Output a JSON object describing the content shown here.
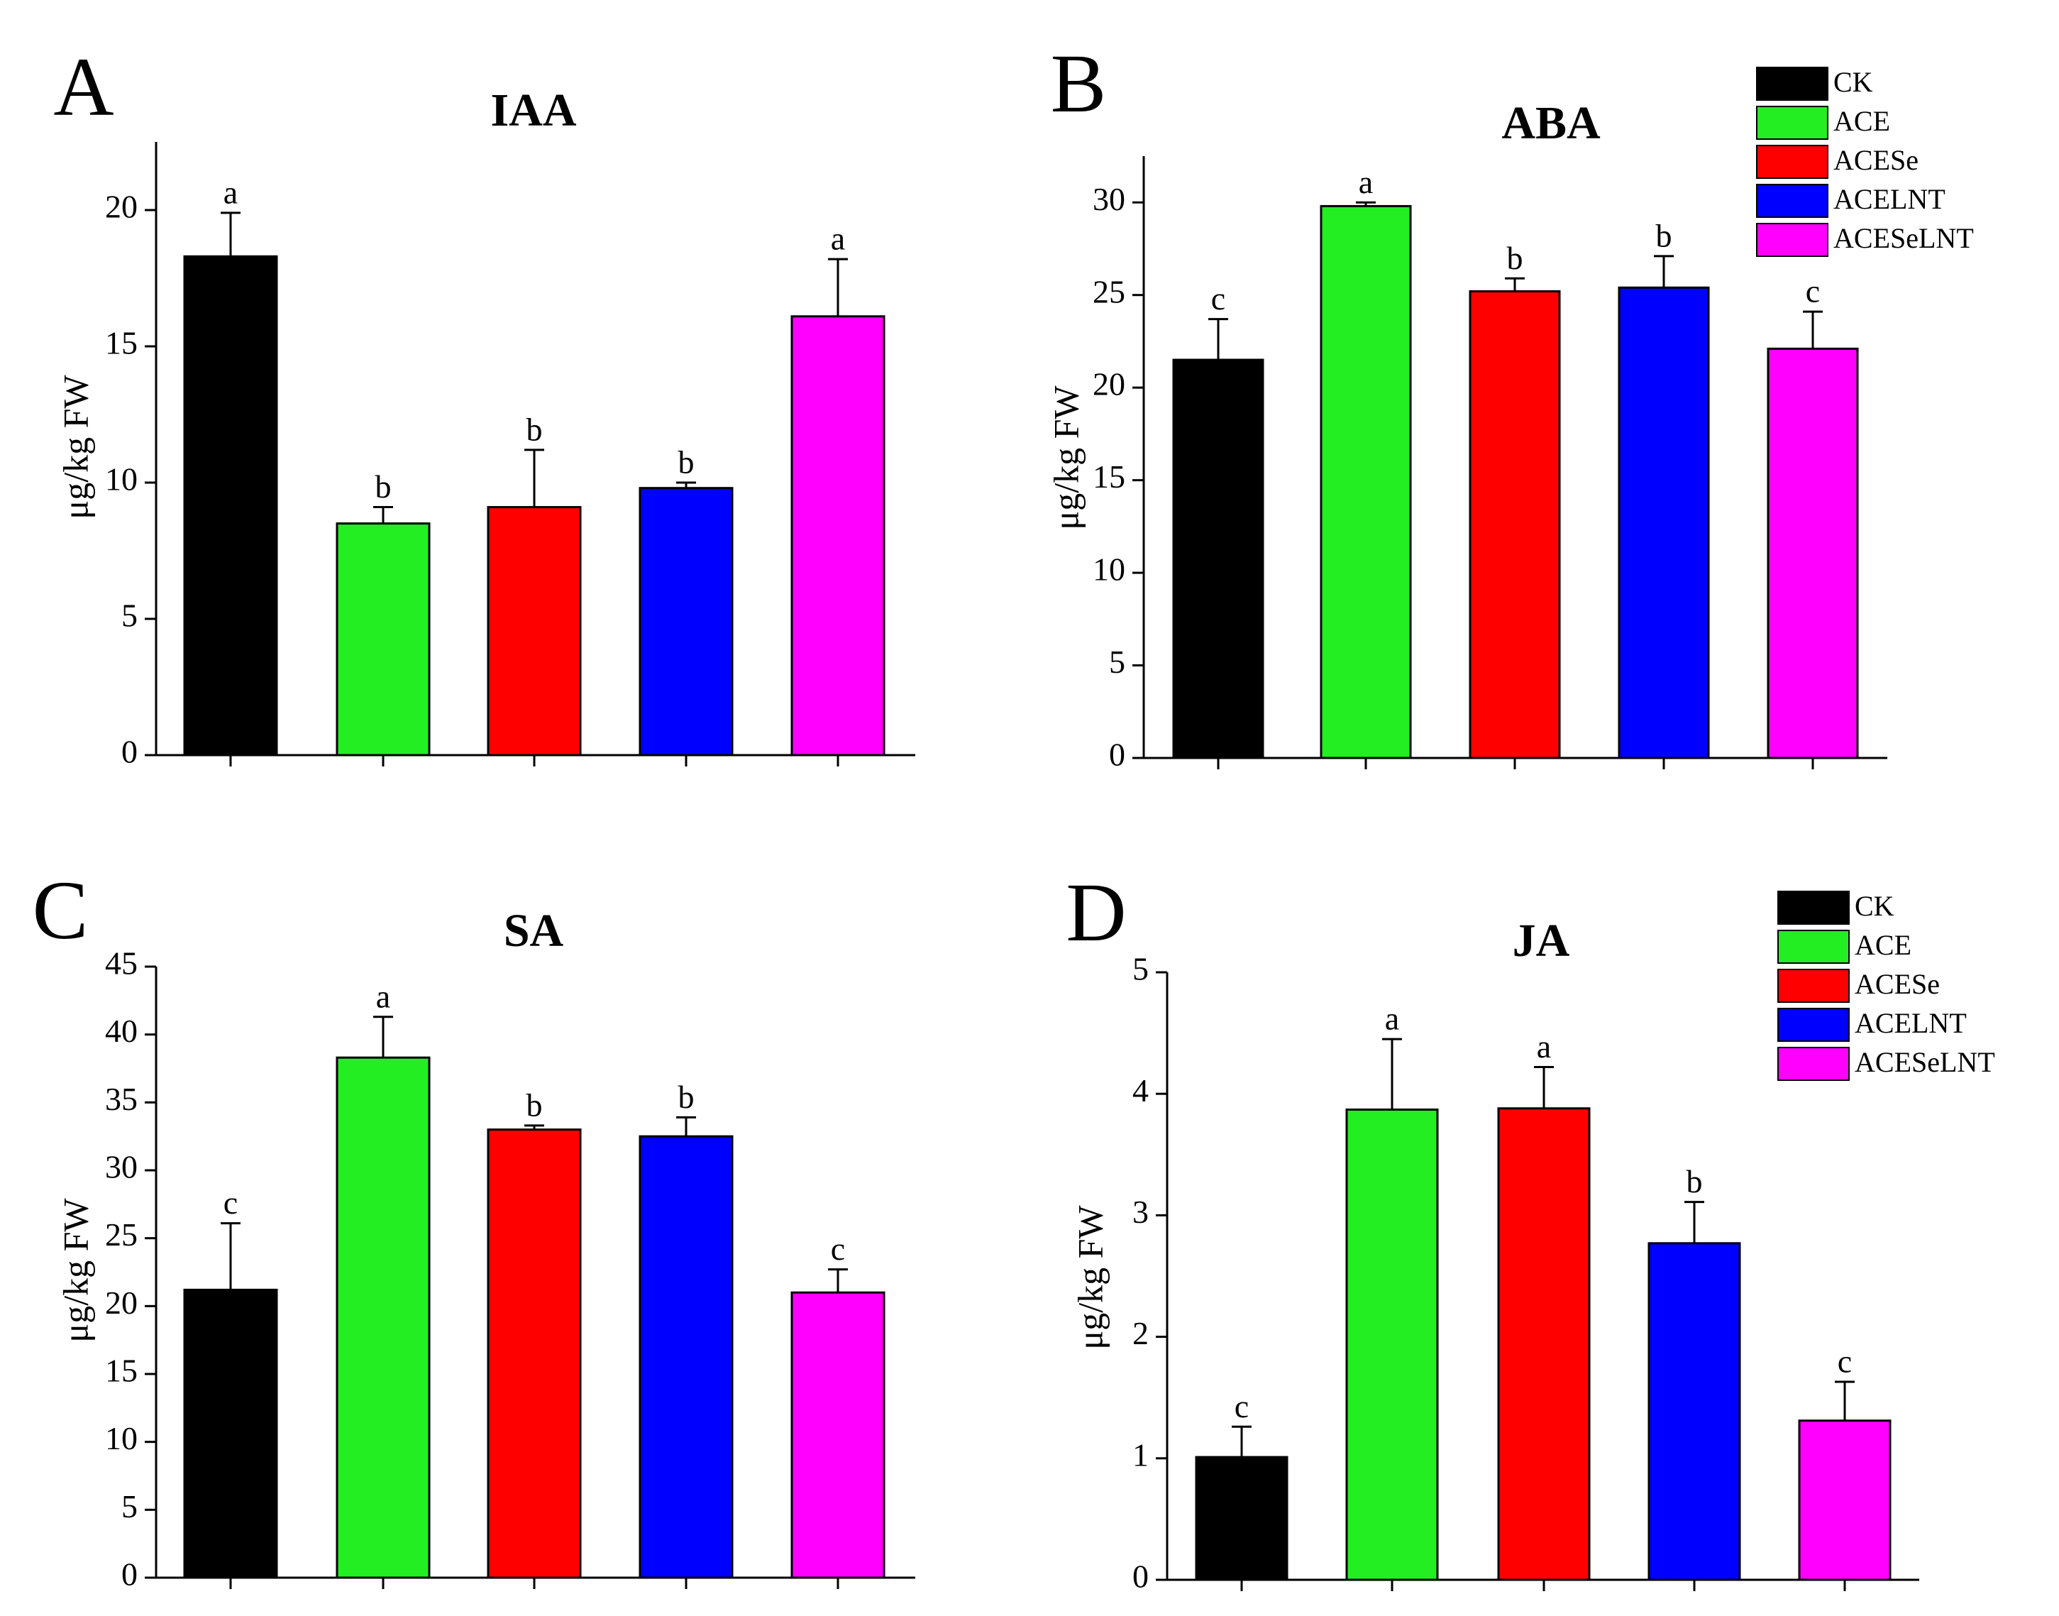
{
  "chart_data": [
    {
      "type": "bar",
      "panel": "A",
      "title": "IAA",
      "ylabel": "μg/kg FW",
      "xlabel": "",
      "categories": [
        "CK",
        "ACE",
        "ACESe",
        "ACELNT",
        "ACESeLNT"
      ],
      "values": [
        18.3,
        8.5,
        9.1,
        9.8,
        16.1
      ],
      "errors": [
        1.6,
        0.6,
        2.1,
        0.2,
        2.1
      ],
      "significance": [
        "a",
        "b",
        "b",
        "b",
        "a"
      ],
      "ylim": [
        0,
        22.5
      ],
      "yticks": [
        0,
        5,
        10,
        15,
        20
      ],
      "legend": false
    },
    {
      "type": "bar",
      "panel": "B",
      "title": "ABA",
      "ylabel": "μg/kg FW",
      "xlabel": "",
      "categories": [
        "CK",
        "ACE",
        "ACESe",
        "ACELNT",
        "ACESeLNT"
      ],
      "values": [
        21.5,
        29.8,
        25.2,
        25.4,
        22.1
      ],
      "errors": [
        2.2,
        0.2,
        0.7,
        1.7,
        2.0
      ],
      "significance": [
        "c",
        "a",
        "b",
        "b",
        "c"
      ],
      "ylim": [
        0,
        32.5
      ],
      "yticks": [
        0,
        5,
        10,
        15,
        20,
        25,
        30
      ],
      "legend": true,
      "legend_position": "top-right"
    },
    {
      "type": "bar",
      "panel": "C",
      "title": "SA",
      "ylabel": "μg/kg FW",
      "xlabel": "",
      "categories": [
        "CK",
        "ACE",
        "ACESe",
        "ACELNT",
        "ACESeLNT"
      ],
      "values": [
        21.2,
        38.3,
        33.0,
        32.5,
        21.0
      ],
      "errors": [
        4.9,
        3.0,
        0.3,
        1.4,
        1.7
      ],
      "significance": [
        "c",
        "a",
        "b",
        "b",
        "c"
      ],
      "ylim": [
        0,
        45
      ],
      "yticks": [
        0,
        5,
        10,
        15,
        20,
        25,
        30,
        35,
        40,
        45
      ],
      "legend": false
    },
    {
      "type": "bar",
      "panel": "D",
      "title": "JA",
      "ylabel": "μg/kg FW",
      "xlabel": "",
      "categories": [
        "CK",
        "ACE",
        "ACESe",
        "ACELNT",
        "ACESeLNT"
      ],
      "values": [
        1.01,
        3.87,
        3.88,
        2.77,
        1.31
      ],
      "errors": [
        0.25,
        0.58,
        0.34,
        0.34,
        0.32
      ],
      "significance": [
        "c",
        "a",
        "a",
        "b",
        "c"
      ],
      "ylim": [
        0,
        5
      ],
      "yticks": [
        0,
        1,
        2,
        3,
        4,
        5
      ],
      "legend": true,
      "legend_position": "top-right"
    }
  ],
  "legend_items": [
    {
      "label": "CK",
      "color": "#000000"
    },
    {
      "label": "ACE",
      "color": "#22ee22"
    },
    {
      "label": "ACESe",
      "color": "#ff0000"
    },
    {
      "label": "ACELNT",
      "color": "#0000ff"
    },
    {
      "label": "ACESeLNT",
      "color": "#ff00ff"
    }
  ]
}
